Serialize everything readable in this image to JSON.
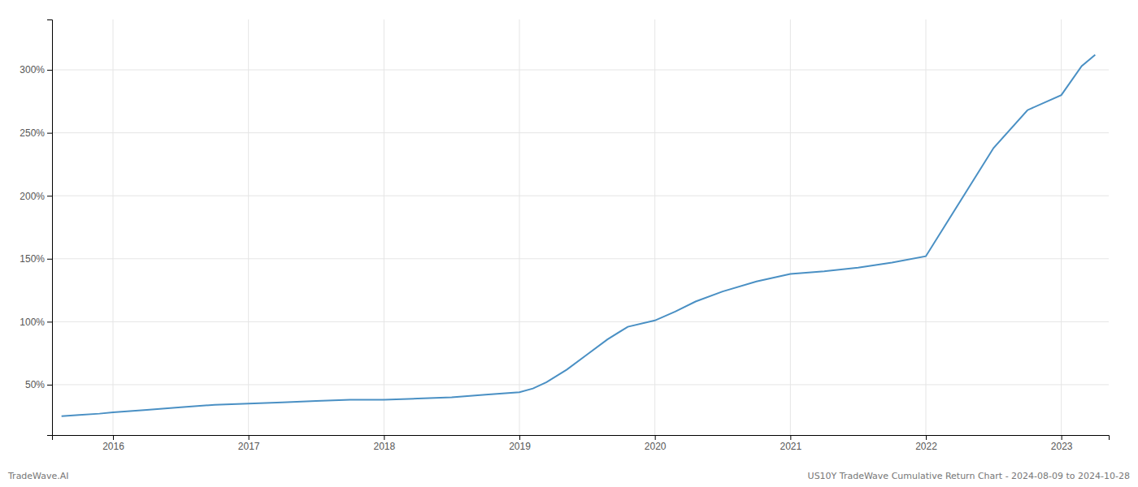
{
  "chart_data": {
    "type": "line",
    "x": [
      2015.62,
      2015.75,
      2015.9,
      2016.0,
      2016.25,
      2016.5,
      2016.75,
      2017.0,
      2017.25,
      2017.5,
      2017.75,
      2018.0,
      2018.25,
      2018.5,
      2018.75,
      2019.0,
      2019.1,
      2019.2,
      2019.35,
      2019.5,
      2019.65,
      2019.8,
      2020.0,
      2020.15,
      2020.3,
      2020.5,
      2020.75,
      2021.0,
      2021.25,
      2021.5,
      2021.75,
      2022.0,
      2022.25,
      2022.5,
      2022.75,
      2023.0,
      2023.15,
      2023.25
    ],
    "values": [
      25,
      26,
      27,
      28,
      30,
      32,
      34,
      35,
      36,
      37,
      38,
      38,
      39,
      40,
      42,
      44,
      47,
      52,
      62,
      74,
      86,
      96,
      101,
      108,
      116,
      124,
      132,
      138,
      140,
      143,
      147,
      152,
      195,
      238,
      268,
      280,
      303,
      312
    ],
    "color": "#4a90c4",
    "xlim": [
      2015.55,
      2023.35
    ],
    "xticks": [
      2016,
      2017,
      2018,
      2019,
      2020,
      2021,
      2022,
      2023
    ],
    "ylim": [
      10,
      340
    ],
    "yticks": [
      {
        "value": 50,
        "label": "50%"
      },
      {
        "value": 100,
        "label": "100%"
      },
      {
        "value": 150,
        "label": "150%"
      },
      {
        "value": 200,
        "label": "200%"
      },
      {
        "value": 250,
        "label": "250%"
      },
      {
        "value": 300,
        "label": "300%"
      }
    ],
    "grid": true,
    "annotations": [
      "TradeWave.AI",
      "US10Y TradeWave Cumulative Return Chart - 2024-08-09 to 2024-10-28"
    ]
  }
}
